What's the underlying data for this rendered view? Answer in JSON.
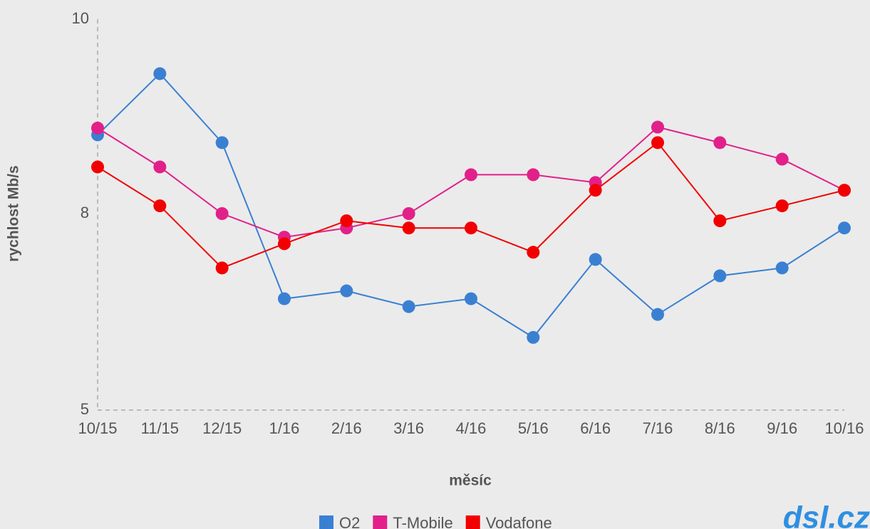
{
  "chart_data": {
    "type": "line",
    "x_label": "měsíc",
    "y_label": "rychlost Mb/s",
    "logo": "dsl.cz",
    "categories": [
      "10/15",
      "11/15",
      "12/15",
      "1/16",
      "2/16",
      "3/16",
      "4/16",
      "5/16",
      "6/16",
      "7/16",
      "8/16",
      "9/16",
      "10/16"
    ],
    "ylim": [
      5,
      10
    ],
    "yticks": [
      5,
      8,
      10
    ],
    "series": [
      {
        "name": "O2",
        "color": "#3a80d2",
        "values": [
          8.81,
          9.44,
          8.73,
          6.7,
          6.82,
          6.58,
          6.7,
          6.11,
          7.3,
          6.46,
          7.05,
          7.17,
          7.78
        ]
      },
      {
        "name": "T-Mobile",
        "color": "#e2208a",
        "values": [
          8.88,
          8.48,
          8.0,
          7.64,
          7.78,
          8.0,
          8.4,
          8.4,
          8.32,
          8.89,
          8.73,
          8.56,
          8.24
        ]
      },
      {
        "name": "Vodafone",
        "color": "#f20000",
        "values": [
          8.48,
          8.08,
          7.17,
          7.54,
          7.89,
          7.78,
          7.78,
          7.41,
          8.24,
          8.73,
          7.89,
          8.08,
          8.24
        ]
      }
    ]
  }
}
